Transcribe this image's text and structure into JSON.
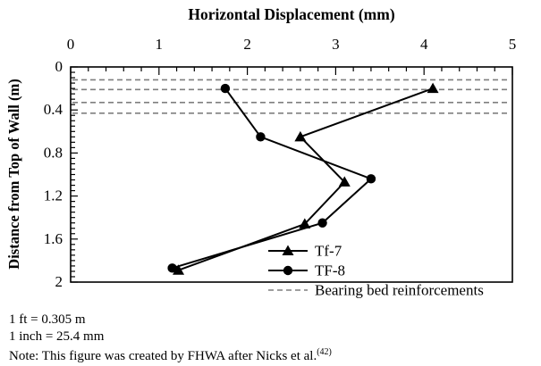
{
  "chart_data": {
    "type": "line",
    "title": "Horizontal Displacement (mm)",
    "xlabel": "Horizontal Displacement (mm)",
    "ylabel": "Distance from Top of Wall (m)",
    "xlabel_position": "top",
    "y_inverted": true,
    "xlim": [
      0,
      5
    ],
    "ylim": [
      0,
      2
    ],
    "x_ticks_major": [
      0,
      1,
      2,
      3,
      4,
      5
    ],
    "x_tick_minor_step": 0.2,
    "y_ticks_major": [
      0,
      0.4,
      0.8,
      1.2,
      1.6,
      2
    ],
    "y_tick_labels": [
      "0",
      "0.4",
      "0.8",
      "1.2",
      "1.6",
      "2"
    ],
    "y_tick_minor_step": 0.05,
    "grid": false,
    "line_color": "#000000",
    "series": [
      {
        "name": "Tf-7",
        "marker": "triangle",
        "color": "#000000",
        "points": [
          [
            4.1,
            0.2
          ],
          [
            2.6,
            0.65
          ],
          [
            3.1,
            1.07
          ],
          [
            2.65,
            1.46
          ],
          [
            1.22,
            1.89
          ]
        ]
      },
      {
        "name": "TF-8",
        "marker": "circle",
        "color": "#000000",
        "points": [
          [
            1.75,
            0.2
          ],
          [
            2.15,
            0.65
          ],
          [
            3.4,
            1.04
          ],
          [
            2.85,
            1.45
          ],
          [
            1.15,
            1.87
          ]
        ]
      }
    ],
    "reference_lines": {
      "label": "Bearing bed reinforcements",
      "style": "dashed",
      "color": "#7f7f7f",
      "y_values": [
        0.12,
        0.21,
        0.33,
        0.43
      ]
    },
    "legend": {
      "position": "inside-bottom-right",
      "entries": [
        "Tf-7",
        "TF-8",
        "Bearing bed reinforcements"
      ]
    }
  },
  "notes": {
    "line1": "1 ft = 0.305 m",
    "line2": "1 inch = 25.4 mm",
    "line3_prefix": "Note: This figure was created by FHWA after Nicks et al.",
    "line3_superscript": "(42)"
  }
}
